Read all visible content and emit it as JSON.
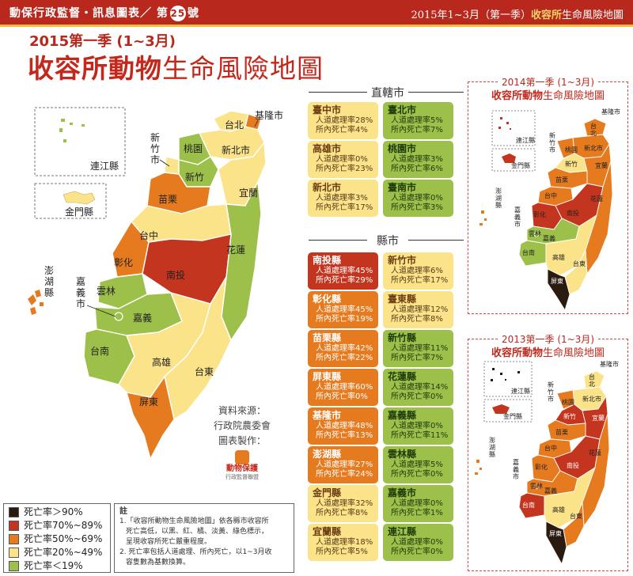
{
  "header": {
    "left_prefix": "動保行政監督・訊息圖表／ 第",
    "issue_number": "25",
    "left_suffix": "號",
    "right_prefix": "2015年1~3月（第一季）",
    "right_highlight": "收容所",
    "right_suffix": "生命風險地圖"
  },
  "title": {
    "season": "2015第一季 (1~3月)",
    "main_bold": "收容所動物",
    "main_thin": "生命風險地圖"
  },
  "main_map": {
    "regions": {
      "keelung": "基隆市",
      "taipei": "台北",
      "new_taipei": "新北市",
      "taoyuan": "桃園",
      "hsinchu_city_1": "新",
      "hsinchu_city_2": "竹",
      "hsinchu_city_3": "市",
      "hsinchu": "新竹",
      "miaoli": "苗栗",
      "yilan": "宜蘭",
      "taichung": "台中",
      "hualien": "花蓮",
      "changhua": "彰化",
      "nantou": "南投",
      "yunlin": "雲林",
      "chiayi_city_1": "嘉",
      "chiayi_city_2": "義",
      "chiayi_city_3": "市",
      "chiayi": "嘉義",
      "tainan": "台南",
      "kaohsiung": "高雄",
      "taitung": "台東",
      "pingtung": "屏東",
      "penghu_1": "澎",
      "penghu_2": "湖",
      "penghu_3": "縣",
      "lienchiang": "連江縣",
      "kinmen": "金門縣"
    },
    "source_label": "資料來源：",
    "source_value": "行政院農委會",
    "made_label": "圖表製作：",
    "maker_logo_text": "動物保護",
    "maker_logo_sub": "行政監督聯盟"
  },
  "municipalities": {
    "section_title": "直轄市",
    "cards": [
      {
        "name": "臺中市",
        "line1": "人道處理率28%",
        "line2": "所內死亡率4%",
        "color": "#fbe38a"
      },
      {
        "name": "臺北市",
        "line1": "人道處理率5%",
        "line2": "所內死亡率7%",
        "color": "#9cc04a"
      },
      {
        "name": "高雄市",
        "line1": "人道處理率0%",
        "line2": "所內死亡率23%",
        "color": "#fbe38a"
      },
      {
        "name": "桃園市",
        "line1": "人道處理率3%",
        "line2": "所內死亡率6%",
        "color": "#9cc04a"
      },
      {
        "name": "新北市",
        "line1": "人道處理率3%",
        "line2": "所內死亡率17%",
        "color": "#fbe38a"
      },
      {
        "name": "臺南市",
        "line1": "人道處理率0%",
        "line2": "所內死亡率3%",
        "color": "#9cc04a"
      }
    ]
  },
  "counties": {
    "section_title": "縣市",
    "cards": [
      {
        "name": "南投縣",
        "line1": "人道處理率45%",
        "line2": "所內死亡率29%",
        "color": "#c4351f"
      },
      {
        "name": "新竹市",
        "line1": "人道處理率6%",
        "line2": "所內死亡率17%",
        "color": "#fbe38a"
      },
      {
        "name": "彰化縣",
        "line1": "人道處理率45%",
        "line2": "所內死亡率19%",
        "color": "#e67a1e"
      },
      {
        "name": "臺東縣",
        "line1": "人道處理率12%",
        "line2": "所內死亡率8%",
        "color": "#fbe38a"
      },
      {
        "name": "苗栗縣",
        "line1": "人道處理率42%",
        "line2": "所內死亡率22%",
        "color": "#e67a1e"
      },
      {
        "name": "新竹縣",
        "line1": "人道處理率11%",
        "line2": "所內死亡率7%",
        "color": "#9cc04a"
      },
      {
        "name": "屏東縣",
        "line1": "人道處理率60%",
        "line2": "所內死亡率0%",
        "color": "#e67a1e"
      },
      {
        "name": "花蓮縣",
        "line1": "人道處理率14%",
        "line2": "所內死亡率0%",
        "color": "#9cc04a"
      },
      {
        "name": "基隆市",
        "line1": "人道處理率48%",
        "line2": "所內死亡率13%",
        "color": "#e67a1e"
      },
      {
        "name": "嘉義縣",
        "line1": "人道處理率0%",
        "line2": "所內死亡率11%",
        "color": "#9cc04a"
      },
      {
        "name": "澎湖縣",
        "line1": "人道處理率27%",
        "line2": "所內死亡率24%",
        "color": "#e67a1e"
      },
      {
        "name": "雲林縣",
        "line1": "人道處理率5%",
        "line2": "所內死亡率0%",
        "color": "#9cc04a"
      },
      {
        "name": "金門縣",
        "line1": "人道處理率32%",
        "line2": "所內死亡率8%",
        "color": "#fbe38a"
      },
      {
        "name": "嘉義市",
        "line1": "人道處理率0%",
        "line2": "所內死亡率1%",
        "color": "#9cc04a"
      },
      {
        "name": "宜蘭縣",
        "line1": "人道處理率18%",
        "line2": "所內死亡率5%",
        "color": "#fbe38a"
      },
      {
        "name": "連江縣",
        "line1": "人道處理率0%",
        "line2": "所內死亡率0%",
        "color": "#9cc04a"
      }
    ]
  },
  "legend": {
    "items": [
      {
        "label": "死亡率＞90%",
        "color": "#2b1a10"
      },
      {
        "label": "死亡率70%~89%",
        "color": "#c4351f"
      },
      {
        "label": "死亡率50%~69%",
        "color": "#e67a1e"
      },
      {
        "label": "死亡率20%~49%",
        "color": "#fbe38a"
      },
      {
        "label": "死亡率＜19%",
        "color": "#9cc04a"
      }
    ]
  },
  "notes": {
    "heading": "註",
    "line1": "1.「收容所動物生命風險地圖」依各縣市收容所",
    "line2": "死亡高低，以黑、紅、橘、淡黃、綠色標示，",
    "line3": "呈現收容所死亡嚴重程度。",
    "line4": "2. 死亡率包括人道處理、所內死亡，以1~3月收",
    "line5": "容隻數為基數換算。"
  },
  "side_2014": {
    "title_season": "2014第一季 (1~3月)",
    "title_bold": "收容所動物",
    "title_thin": "生命風險地圖",
    "labels": {
      "keelung": "基隆市",
      "taipei_1": "台",
      "taipei_2": "北",
      "new_taipei": "新北市",
      "taoyuan": "桃園",
      "hsinchu_city_1": "新",
      "hsinchu_city_2": "竹",
      "hsinchu_city_3": "市",
      "hsinchu": "新竹",
      "yilan": "宜蘭",
      "miaoli": "苗栗",
      "taichung": "台中",
      "hualien": "花蓮",
      "changhua": "彰化",
      "nantou": "南投",
      "yunlin": "雲林",
      "chiayi_city_1": "嘉",
      "chiayi_city_2": "義",
      "chiayi_city_3": "市",
      "chiayi": "嘉義",
      "penghu_1": "澎",
      "penghu_2": "湖",
      "penghu_3": "縣",
      "tainan": "台南",
      "kaohsiung": "高雄",
      "taitung": "台東",
      "pingtung": "屏東",
      "lienchiang": "連江縣",
      "kinmen": "金門縣"
    }
  },
  "side_2013": {
    "title_season": "2013第一季 (1~3月)",
    "title_bold": "收容所動物",
    "title_thin": "生命風險地圖",
    "labels": {
      "keelung": "基隆市",
      "taipei_1": "台",
      "taipei_2": "北",
      "new_taipei": "新北市",
      "taoyuan": "桃園",
      "hsinchu_city_1": "新",
      "hsinchu_city_2": "竹",
      "hsinchu_city_3": "市",
      "hsinchu": "新竹",
      "yilan": "宜蘭",
      "miaoli": "苗栗",
      "taichung": "台中",
      "hualien": "花蓮",
      "changhua": "彰化",
      "nantou": "南投",
      "yunlin": "雲林",
      "chiayi_city_1": "嘉",
      "chiayi_city_2": "義",
      "chiayi_city_3": "市",
      "chiayi": "嘉義",
      "penghu_1": "澎",
      "penghu_2": "湖",
      "penghu_3": "縣",
      "tainan": "台南",
      "kaohsiung": "高雄",
      "taitung": "台東",
      "pingtung": "屏東",
      "lienchiang": "連江縣",
      "kinmen": "金門縣"
    }
  }
}
